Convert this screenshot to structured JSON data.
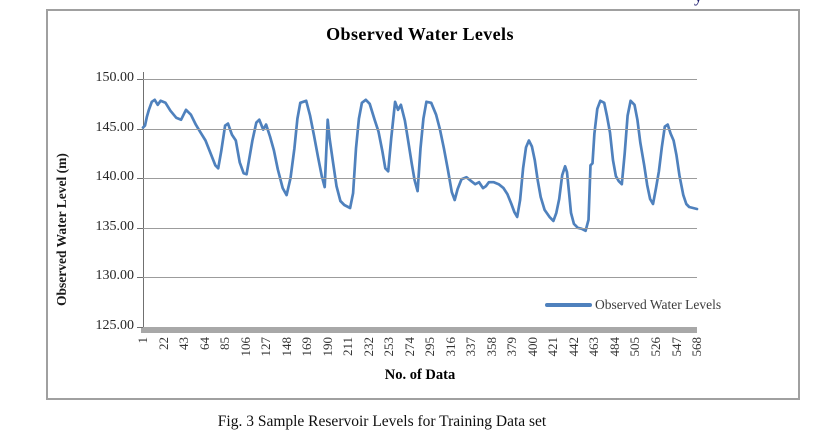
{
  "page": {
    "fragment_top_right": "y",
    "caption": "Fig. 3 Sample Reservoir Levels for Training Data set"
  },
  "colors": {
    "series_blue": "#4f81bd",
    "gridline_gray": "#9c9c9c",
    "axis_band_gray": "#a8a8a8",
    "border_gray": "#a0a0a0"
  },
  "chart_data": {
    "type": "line",
    "title": "Observed Water Levels",
    "xlabel": "No. of Data",
    "ylabel": "Observed Water Level (m)",
    "ylim": [
      125,
      150
    ],
    "x_max": 568,
    "grid": true,
    "y_ticks": [
      "150.00",
      "145.00",
      "140.00",
      "135.00",
      "130.00",
      "125.00"
    ],
    "x_ticks": [
      1,
      22,
      43,
      64,
      85,
      106,
      127,
      148,
      169,
      190,
      211,
      232,
      253,
      274,
      295,
      316,
      337,
      358,
      379,
      400,
      421,
      442,
      463,
      484,
      505,
      526,
      547,
      568
    ],
    "legend": {
      "position": "inside-bottom-right",
      "entries": [
        "Observed Water Levels"
      ]
    },
    "series": [
      {
        "name": "Observed Water Levels",
        "color": "#4f81bd",
        "points": [
          [
            1,
            145.1
          ],
          [
            3,
            145.3
          ],
          [
            5,
            146.2
          ],
          [
            7,
            146.9
          ],
          [
            10,
            147.7
          ],
          [
            13,
            147.9
          ],
          [
            16,
            147.4
          ],
          [
            19,
            147.8
          ],
          [
            24,
            147.6
          ],
          [
            29,
            146.8
          ],
          [
            35,
            146.1
          ],
          [
            40,
            145.9
          ],
          [
            45,
            146.9
          ],
          [
            50,
            146.4
          ],
          [
            55,
            145.4
          ],
          [
            60,
            144.6
          ],
          [
            65,
            143.8
          ],
          [
            71,
            142.3
          ],
          [
            75,
            141.3
          ],
          [
            78,
            141.0
          ],
          [
            81,
            142.7
          ],
          [
            85,
            145.3
          ],
          [
            88,
            145.5
          ],
          [
            92,
            144.4
          ],
          [
            96,
            143.8
          ],
          [
            100,
            141.6
          ],
          [
            104,
            140.5
          ],
          [
            107,
            140.4
          ],
          [
            113,
            143.8
          ],
          [
            117,
            145.6
          ],
          [
            120,
            145.9
          ],
          [
            124,
            144.9
          ],
          [
            127,
            145.4
          ],
          [
            131,
            144.2
          ],
          [
            135,
            142.8
          ],
          [
            139,
            140.9
          ],
          [
            144,
            139.0
          ],
          [
            148,
            138.3
          ],
          [
            152,
            140.0
          ],
          [
            156,
            143.0
          ],
          [
            159,
            146.0
          ],
          [
            162,
            147.6
          ],
          [
            168,
            147.8
          ],
          [
            172,
            146.3
          ],
          [
            176,
            144.3
          ],
          [
            180,
            142.2
          ],
          [
            184,
            140.2
          ],
          [
            187,
            139.1
          ],
          [
            190,
            145.9
          ],
          [
            192,
            144.0
          ],
          [
            195,
            141.9
          ],
          [
            199,
            139.2
          ],
          [
            203,
            137.7
          ],
          [
            207,
            137.3
          ],
          [
            213,
            137.0
          ],
          [
            216,
            138.5
          ],
          [
            219,
            143.0
          ],
          [
            222,
            146.0
          ],
          [
            225,
            147.6
          ],
          [
            229,
            147.9
          ],
          [
            233,
            147.5
          ],
          [
            238,
            145.9
          ],
          [
            242,
            144.7
          ],
          [
            246,
            142.7
          ],
          [
            249,
            141.0
          ],
          [
            252,
            140.7
          ],
          [
            255,
            144.0
          ],
          [
            259,
            147.7
          ],
          [
            262,
            146.9
          ],
          [
            265,
            147.4
          ],
          [
            269,
            145.8
          ],
          [
            272,
            144.0
          ],
          [
            276,
            141.5
          ],
          [
            279,
            139.8
          ],
          [
            282,
            138.7
          ],
          [
            285,
            143.0
          ],
          [
            288,
            146.0
          ],
          [
            291,
            147.7
          ],
          [
            296,
            147.6
          ],
          [
            301,
            146.4
          ],
          [
            305,
            144.9
          ],
          [
            309,
            143.0
          ],
          [
            313,
            140.9
          ],
          [
            317,
            138.6
          ],
          [
            320,
            137.8
          ],
          [
            323,
            138.9
          ],
          [
            327,
            139.9
          ],
          [
            332,
            140.1
          ],
          [
            337,
            139.7
          ],
          [
            341,
            139.4
          ],
          [
            345,
            139.6
          ],
          [
            349,
            139.0
          ],
          [
            352,
            139.2
          ],
          [
            355,
            139.6
          ],
          [
            360,
            139.6
          ],
          [
            365,
            139.4
          ],
          [
            370,
            139.0
          ],
          [
            374,
            138.4
          ],
          [
            378,
            137.4
          ],
          [
            381,
            136.6
          ],
          [
            384,
            136.1
          ],
          [
            387,
            137.8
          ],
          [
            390,
            141.0
          ],
          [
            393,
            143.1
          ],
          [
            396,
            143.8
          ],
          [
            399,
            143.2
          ],
          [
            402,
            141.8
          ],
          [
            405,
            139.8
          ],
          [
            408,
            138.1
          ],
          [
            412,
            136.8
          ],
          [
            417,
            136.1
          ],
          [
            421,
            135.7
          ],
          [
            424,
            136.5
          ],
          [
            427,
            137.9
          ],
          [
            430,
            140.3
          ],
          [
            433,
            141.2
          ],
          [
            435,
            140.6
          ],
          [
            437,
            138.6
          ],
          [
            439,
            136.5
          ],
          [
            442,
            135.4
          ],
          [
            446,
            135.0
          ],
          [
            450,
            134.9
          ],
          [
            454,
            134.7
          ],
          [
            457,
            135.8
          ],
          [
            459,
            141.3
          ],
          [
            461,
            141.5
          ],
          [
            463,
            144.5
          ],
          [
            466,
            147.0
          ],
          [
            469,
            147.8
          ],
          [
            473,
            147.6
          ],
          [
            476,
            146.2
          ],
          [
            479,
            144.6
          ],
          [
            482,
            141.8
          ],
          [
            485,
            140.2
          ],
          [
            488,
            139.7
          ],
          [
            491,
            139.4
          ],
          [
            494,
            142.5
          ],
          [
            497,
            146.3
          ],
          [
            500,
            147.8
          ],
          [
            504,
            147.4
          ],
          [
            507,
            145.9
          ],
          [
            510,
            143.6
          ],
          [
            514,
            141.3
          ],
          [
            517,
            139.3
          ],
          [
            520,
            137.9
          ],
          [
            523,
            137.4
          ],
          [
            526,
            139.0
          ],
          [
            529,
            140.7
          ],
          [
            532,
            143.1
          ],
          [
            535,
            145.2
          ],
          [
            538,
            145.4
          ],
          [
            541,
            144.5
          ],
          [
            544,
            143.8
          ],
          [
            547,
            142.3
          ],
          [
            550,
            140.3
          ],
          [
            554,
            138.3
          ],
          [
            557,
            137.4
          ],
          [
            560,
            137.1
          ],
          [
            568,
            136.9
          ]
        ]
      }
    ]
  }
}
